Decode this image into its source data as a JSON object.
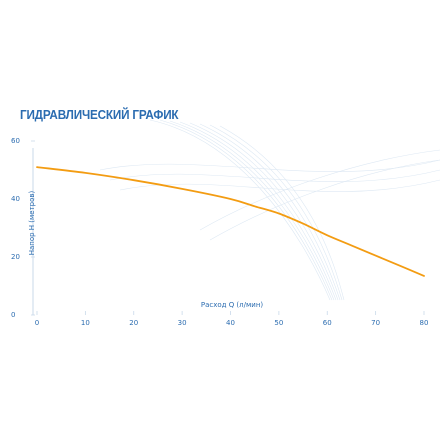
{
  "chart_data": {
    "type": "line",
    "title": "ГИДРАВЛИЧЕСКИЙ ГРАФИК",
    "xlabel": "Расход Q (л/мин)",
    "ylabel": "Напор H (метров)",
    "xlim": [
      0,
      80
    ],
    "ylim": [
      0,
      60
    ],
    "x_ticks": [
      "0",
      "10",
      "20",
      "30",
      "40",
      "50",
      "60",
      "70",
      "80"
    ],
    "y_ticks": [
      "0",
      "20",
      "40",
      "60"
    ],
    "grid": false,
    "series": [
      {
        "color": "#f39c12",
        "x": [
          0,
          10,
          20,
          30,
          40,
          45,
          50,
          55,
          60,
          65,
          70,
          75,
          80
        ],
        "y": [
          51,
          49,
          46.5,
          43.5,
          40,
          37.5,
          35,
          31.5,
          27.5,
          24,
          20.5,
          17,
          13.5
        ]
      }
    ]
  }
}
